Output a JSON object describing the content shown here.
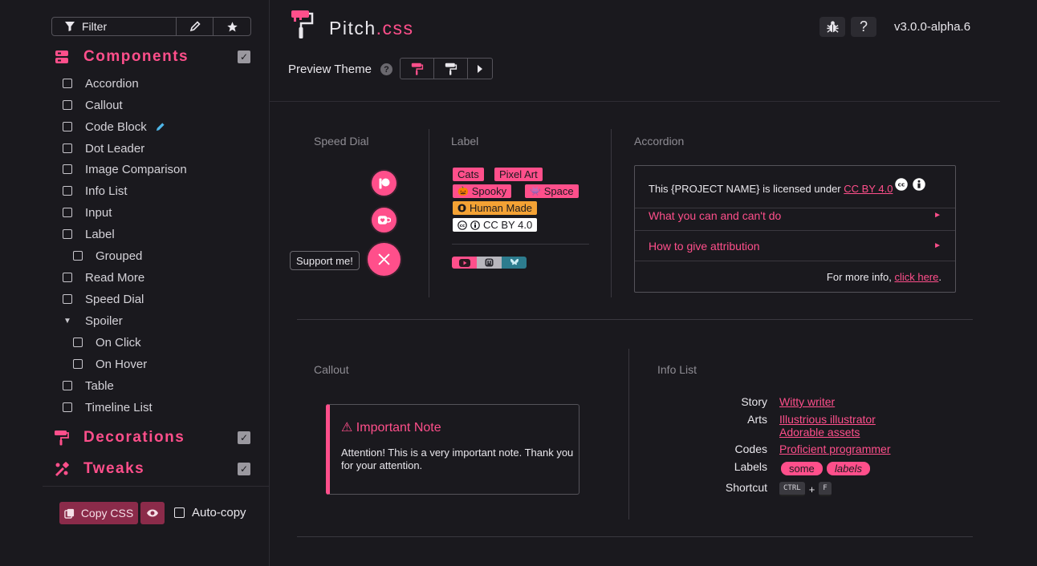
{
  "sidebar": {
    "filter_label": "Filter",
    "sections": {
      "components": "Components",
      "decorations": "Decorations",
      "tweaks": "Tweaks"
    },
    "items": [
      "Accordion",
      "Callout",
      "Code Block",
      "Dot Leader",
      "Image Comparison",
      "Info List",
      "Input",
      "Label",
      "Grouped",
      "Read More",
      "Speed Dial",
      "Spoiler",
      "On Click",
      "On Hover",
      "Table",
      "Timeline List"
    ],
    "copy_label": "Copy CSS",
    "autocopy_label": "Auto-copy"
  },
  "header": {
    "logo_name": "Pitch",
    "logo_ext": ".css",
    "version": "v3.0.0-alpha.6",
    "help": "?",
    "preview_label": "Preview Theme",
    "preview_help": "?"
  },
  "speed_dial": {
    "title": "Speed Dial",
    "tooltip": "Support me!"
  },
  "label": {
    "title": "Label",
    "tags": [
      "Cats",
      "Pixel Art",
      "Spooky",
      "Space",
      "Human Made",
      "CC BY 4.0"
    ]
  },
  "accordion": {
    "title": "Accordion",
    "license_prefix": "This {PROJECT NAME} is licensed under ",
    "license_link": "CC BY 4.0",
    "row1": "What you can and can't do",
    "row2": "How to give attribution",
    "more_prefix": "For more info, ",
    "more_link": "click here",
    "more_suffix": "."
  },
  "callout": {
    "title": "Callout",
    "heading": "⚠ Important Note",
    "body": "Attention! This is a very important note. Thank you for your attention."
  },
  "info_list": {
    "title": "Info List",
    "rows": [
      {
        "label": "Story",
        "value": "Witty writer"
      },
      {
        "label": "Arts",
        "value": "Illustrious illustrator"
      },
      {
        "label": "",
        "value": "Adorable assets"
      },
      {
        "label": "Codes",
        "value": "Proficient programmer"
      },
      {
        "label": "Labels",
        "value": ""
      },
      {
        "label": "Shortcut",
        "value": ""
      }
    ],
    "labels": [
      "some",
      "labels"
    ],
    "kbd": [
      "CTRL",
      "+",
      "F"
    ]
  },
  "colors": {
    "accent": "#ff4f8b",
    "background": "#1a191e",
    "orange": "#f4a234"
  }
}
